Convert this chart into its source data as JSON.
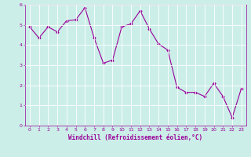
{
  "x": [
    0,
    1,
    2,
    3,
    4,
    5,
    6,
    7,
    8,
    9,
    10,
    11,
    12,
    13,
    14,
    15,
    16,
    17,
    18,
    19,
    20,
    21,
    22,
    23
  ],
  "y": [
    4.9,
    4.35,
    4.9,
    4.65,
    5.2,
    5.25,
    5.85,
    4.35,
    3.1,
    3.25,
    4.9,
    5.05,
    5.7,
    4.8,
    4.05,
    3.75,
    1.9,
    1.65,
    1.65,
    1.45,
    2.1,
    1.45,
    0.4,
    1.85
  ],
  "line_color": "#990099",
  "marker": "D",
  "markersize": 1.8,
  "linewidth": 0.8,
  "xlabel": "Windchill (Refroidissement éolien,°C)",
  "ylim": [
    0,
    6
  ],
  "xlim": [
    -0.5,
    23.5
  ],
  "yticks": [
    0,
    1,
    2,
    3,
    4,
    5,
    6
  ],
  "xticks": [
    0,
    1,
    2,
    3,
    4,
    5,
    6,
    7,
    8,
    9,
    10,
    11,
    12,
    13,
    14,
    15,
    16,
    17,
    18,
    19,
    20,
    21,
    22,
    23
  ],
  "bg_color": "#cceee8",
  "grid_color": "#ffffff",
  "tick_color": "#990099",
  "xlabel_color": "#990099",
  "tick_fontsize": 4.5,
  "xlabel_fontsize": 5.5
}
